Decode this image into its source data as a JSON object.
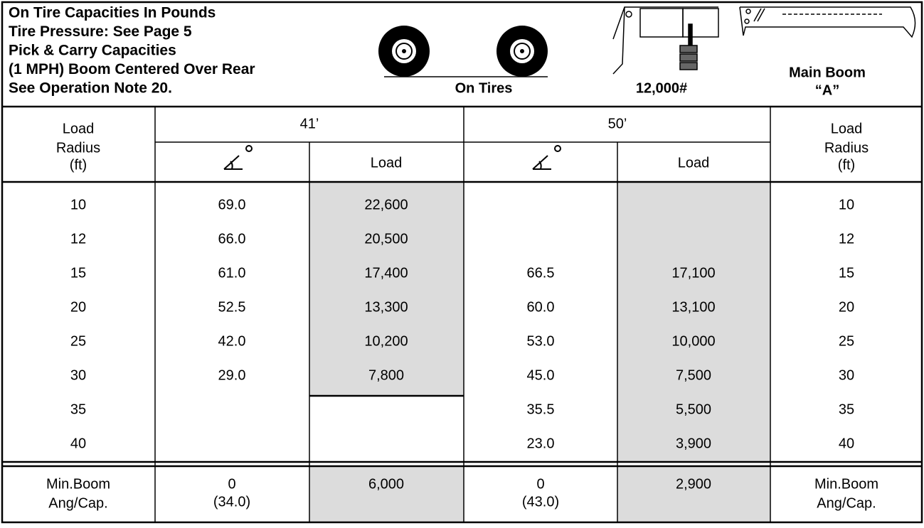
{
  "header": {
    "title_lines": [
      "On Tire Capacities In Pounds",
      "Tire Pressure:  See Page 5",
      "Pick & Carry Capacities",
      "(1 MPH) Boom Centered Over Rear",
      "See Operation Note 20."
    ],
    "tires_label": "On Tires",
    "counterweight_label": "12,000#",
    "boom_label": [
      "Main Boom",
      "“A”"
    ]
  },
  "table": {
    "radius_header": [
      "Load",
      "Radius",
      "(ft)"
    ],
    "groups": [
      "41’",
      "50’"
    ],
    "load_header": [
      "Load",
      "Load"
    ],
    "rows": [
      [
        "10",
        "69.0",
        "22,600",
        null,
        null,
        "10"
      ],
      [
        "12",
        "66.0",
        "20,500",
        null,
        null,
        "12"
      ],
      [
        "15",
        "61.0",
        "17,400",
        "66.5",
        "17,100",
        "15"
      ],
      [
        "20",
        "52.5",
        "13,300",
        "60.0",
        "13,100",
        "20"
      ],
      [
        "25",
        "42.0",
        "10,200",
        "53.0",
        "10,000",
        "25"
      ],
      [
        "30",
        "29.0",
        "7,800",
        "45.0",
        "7,500",
        "30"
      ],
      [
        "35",
        null,
        null,
        "35.5",
        "5,500",
        "35"
      ],
      [
        "40",
        null,
        null,
        "23.0",
        "3,900",
        "40"
      ]
    ],
    "footer": {
      "label": [
        "Min.Boom",
        "Ang/Cap."
      ],
      "angle41": [
        "0",
        "(34.0)"
      ],
      "load41": "6,000",
      "angle50": [
        "0",
        "(43.0)"
      ],
      "load50": "2,900",
      "label_right": [
        "Min.Boom",
        "Ang/Cap."
      ]
    }
  }
}
